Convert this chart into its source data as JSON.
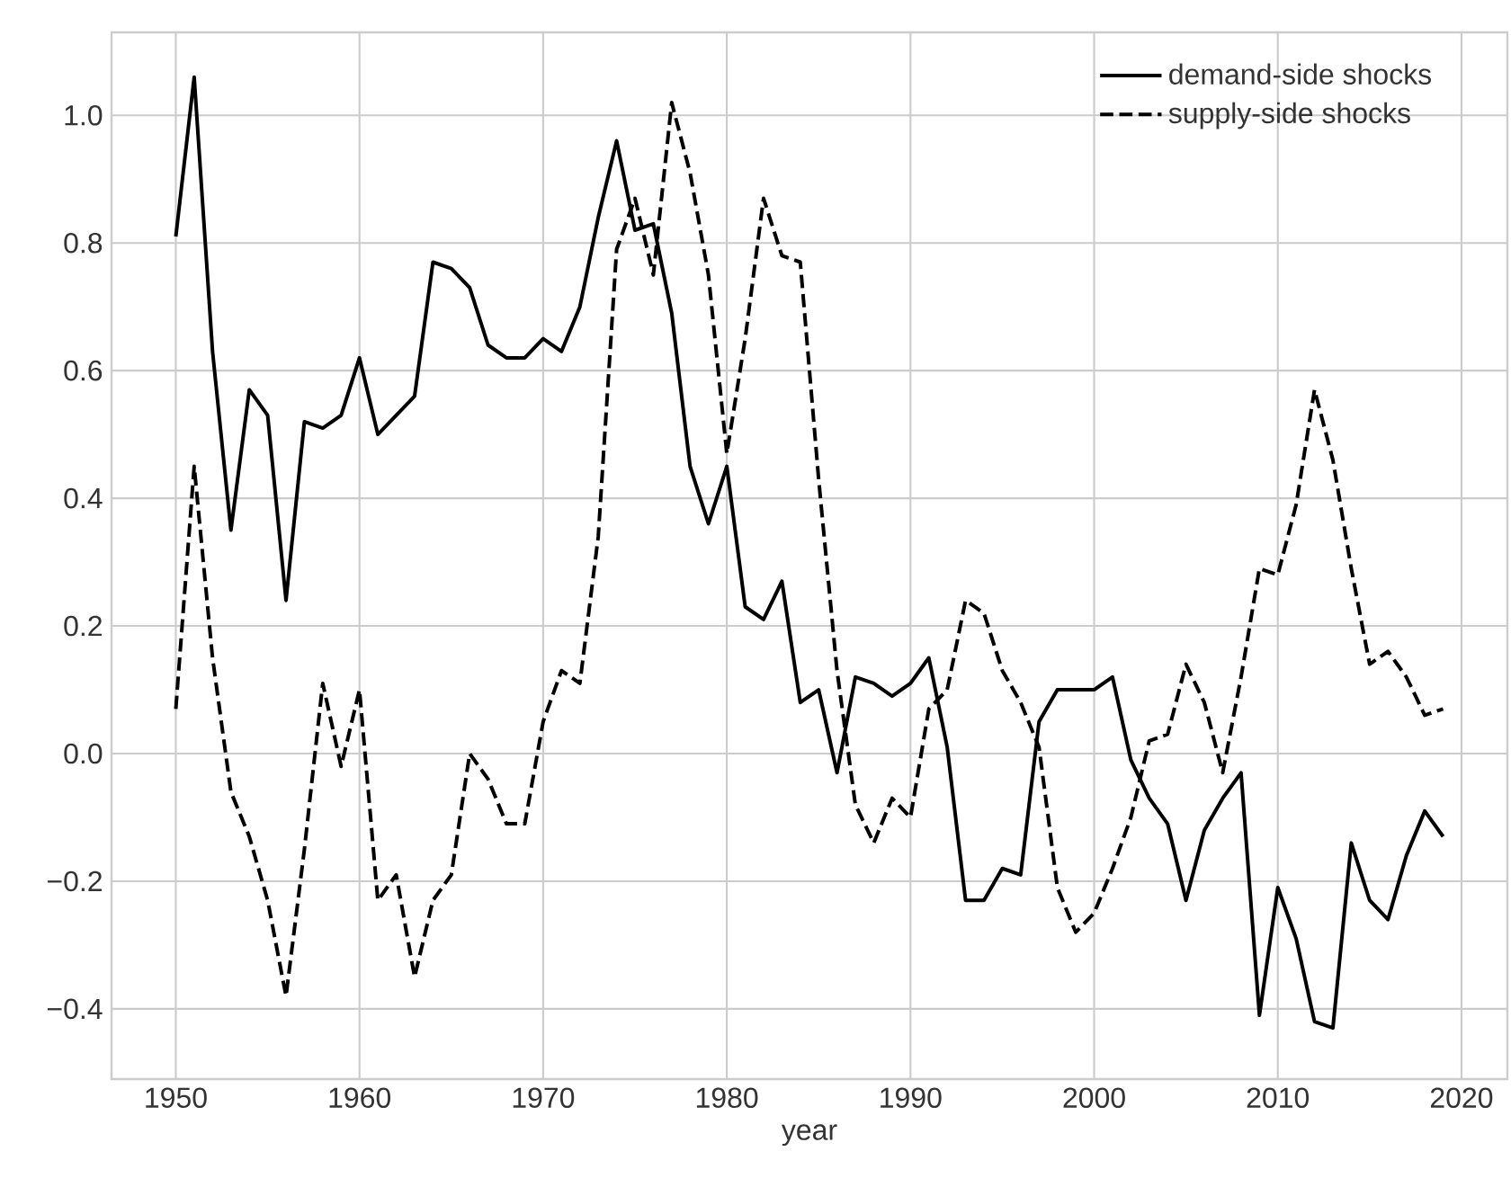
{
  "chart_data": {
    "type": "line",
    "xlabel": "year",
    "x": [
      1950,
      1951,
      1952,
      1953,
      1954,
      1955,
      1956,
      1957,
      1958,
      1959,
      1960,
      1961,
      1962,
      1963,
      1964,
      1965,
      1966,
      1967,
      1968,
      1969,
      1970,
      1971,
      1972,
      1973,
      1974,
      1975,
      1976,
      1977,
      1978,
      1979,
      1980,
      1981,
      1982,
      1983,
      1984,
      1985,
      1986,
      1987,
      1988,
      1989,
      1990,
      1991,
      1992,
      1993,
      1994,
      1995,
      1996,
      1997,
      1998,
      1999,
      2000,
      2001,
      2002,
      2003,
      2004,
      2005,
      2006,
      2007,
      2008,
      2009,
      2010,
      2011,
      2012,
      2013,
      2014,
      2015,
      2016,
      2017,
      2018,
      2019
    ],
    "series": [
      {
        "name": "demand-side shocks",
        "color": "#000000",
        "line_style": "solid",
        "values": [
          0.81,
          1.06,
          0.63,
          0.35,
          0.57,
          0.53,
          0.24,
          0.52,
          0.51,
          0.53,
          0.62,
          0.5,
          0.53,
          0.56,
          0.77,
          0.76,
          0.73,
          0.64,
          0.62,
          0.62,
          0.65,
          0.63,
          0.7,
          0.84,
          0.96,
          0.82,
          0.83,
          0.69,
          0.45,
          0.36,
          0.45,
          0.23,
          0.21,
          0.27,
          0.08,
          0.1,
          -0.03,
          0.12,
          0.11,
          0.09,
          0.11,
          0.15,
          0.01,
          -0.23,
          -0.23,
          -0.18,
          -0.19,
          0.05,
          0.1,
          0.1,
          0.1,
          0.12,
          -0.01,
          -0.07,
          -0.11,
          -0.23,
          -0.12,
          -0.07,
          -0.03,
          -0.41,
          -0.21,
          -0.29,
          -0.42,
          -0.43,
          -0.14,
          -0.23,
          -0.26,
          -0.16,
          -0.09,
          -0.13
        ]
      },
      {
        "name": "supply-side shocks",
        "color": "#000000",
        "line_style": "dashed",
        "values": [
          0.07,
          0.45,
          0.15,
          -0.06,
          -0.13,
          -0.23,
          -0.38,
          -0.15,
          0.11,
          -0.02,
          0.1,
          -0.23,
          -0.19,
          -0.35,
          -0.23,
          -0.19,
          0.0,
          -0.04,
          -0.11,
          -0.11,
          0.05,
          0.13,
          0.11,
          0.34,
          0.79,
          0.87,
          0.75,
          1.02,
          0.91,
          0.75,
          0.47,
          0.65,
          0.87,
          0.78,
          0.77,
          0.43,
          0.13,
          -0.08,
          -0.14,
          -0.07,
          -0.1,
          0.07,
          0.1,
          0.24,
          0.22,
          0.13,
          0.08,
          0.01,
          -0.21,
          -0.28,
          -0.25,
          -0.18,
          -0.1,
          0.02,
          0.03,
          0.14,
          0.08,
          -0.03,
          0.12,
          0.29,
          0.28,
          0.39,
          0.57,
          0.46,
          0.29,
          0.14,
          0.16,
          0.12,
          0.06,
          0.07
        ]
      }
    ],
    "xlim": [
      1946.5,
      2022.5
    ],
    "ylim": [
      -0.51,
      1.13
    ],
    "xticks": [
      1950,
      1960,
      1970,
      1980,
      1990,
      2000,
      2010,
      2020
    ],
    "yticks": [
      {
        "value": -0.4,
        "label": "−0.4"
      },
      {
        "value": -0.2,
        "label": "−0.2"
      },
      {
        "value": 0,
        "label": "0.0"
      },
      {
        "value": 0.2,
        "label": "0.2"
      },
      {
        "value": 0.4,
        "label": "0.4"
      },
      {
        "value": 0.6,
        "label": "0.6"
      },
      {
        "value": 0.8,
        "label": "0.8"
      },
      {
        "value": 1.0,
        "label": "1.0"
      }
    ],
    "grid": true,
    "legend": "top right"
  }
}
